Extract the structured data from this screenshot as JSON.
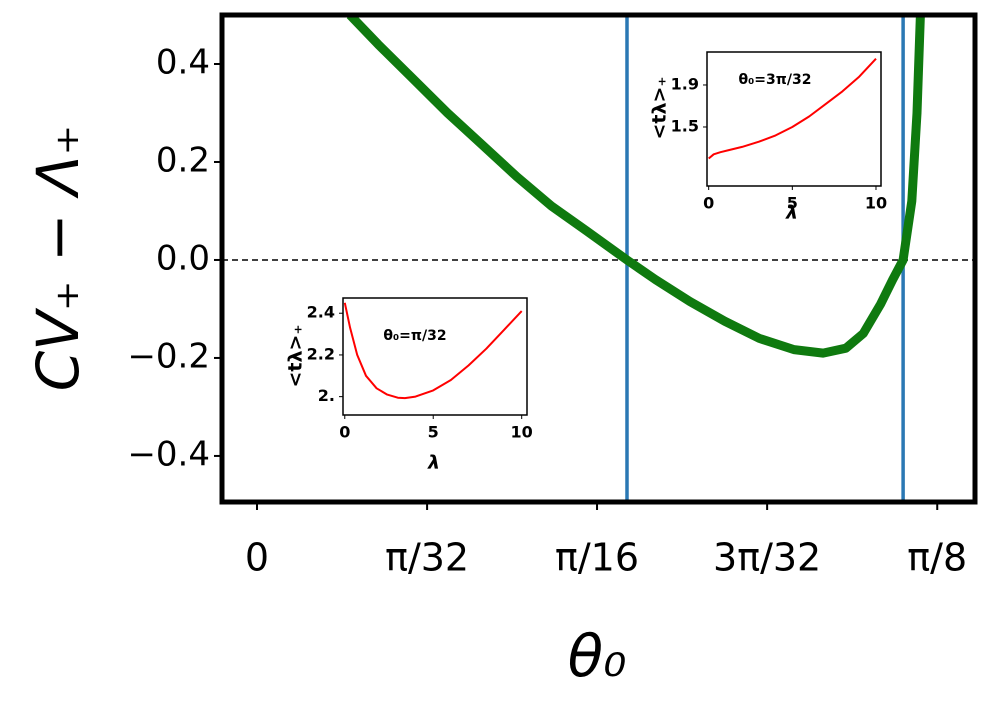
{
  "chart_data": [
    {
      "type": "line",
      "xlabel": "θ₀",
      "ylabel": "CV₊ − Λ₊",
      "color": "#0f7a0f",
      "x": [
        0.0537,
        0.07,
        0.09,
        0.11,
        0.13,
        0.15,
        0.17,
        0.19,
        0.2136,
        0.23,
        0.25,
        0.27,
        0.29,
        0.31,
        0.3268,
        0.34,
        0.35,
        0.36,
        0.367,
        0.373,
        0.378,
        0.381,
        0.383
      ],
      "values": [
        0.5,
        0.44,
        0.37,
        0.3,
        0.235,
        0.17,
        0.11,
        0.06,
        0.0,
        -0.04,
        -0.085,
        -0.125,
        -0.16,
        -0.183,
        -0.19,
        -0.18,
        -0.15,
        -0.09,
        -0.04,
        0.0,
        0.12,
        0.3,
        0.5
      ],
      "xlim": [
        -0.0202,
        0.4145
      ],
      "ylim": [
        -0.494,
        0.5
      ],
      "xticks": [
        {
          "value": 0,
          "label": "0"
        },
        {
          "value": 0.0982,
          "label": "π/32"
        },
        {
          "value": 0.1963,
          "label": "π/16"
        },
        {
          "value": 0.2945,
          "label": "3π/32"
        },
        {
          "value": 0.3927,
          "label": "π/8"
        }
      ],
      "yticks": [
        {
          "value": -0.4,
          "label": "−0.4"
        },
        {
          "value": -0.2,
          "label": "−0.2"
        },
        {
          "value": 0.0,
          "label": "0.0"
        },
        0.2,
        0.4
      ],
      "vlines": [
        0.2136,
        0.373
      ],
      "vline_color": "#2a78b4",
      "hline": 0
    },
    {
      "type": "line",
      "xlabel": "λ",
      "ylabel": "<tλ>₊",
      "annotation": "θ₀=π/32",
      "color": "#ff0000",
      "x": [
        0,
        0.3,
        0.7,
        1.2,
        1.8,
        2.4,
        3.0,
        3.4,
        4.0,
        5.0,
        6.0,
        7.0,
        8.0,
        9.0,
        10.0
      ],
      "values": [
        2.45,
        2.33,
        2.2,
        2.1,
        2.04,
        2.01,
        1.995,
        1.993,
        2.0,
        2.03,
        2.08,
        2.15,
        2.23,
        2.32,
        2.41
      ],
      "xlim": [
        -0.1,
        10.3
      ],
      "ylim": [
        1.912,
        2.473
      ],
      "xticks": [
        0,
        5,
        10
      ],
      "yticks": [
        {
          "value": 2.0,
          "label": "2."
        },
        2.2,
        2.4
      ]
    },
    {
      "type": "line",
      "xlabel": "λ",
      "ylabel": "<tλ>₊",
      "annotation": "θ₀=3π/32",
      "color": "#ff0000",
      "x": [
        0,
        0.3,
        0.7,
        1.2,
        2.0,
        3.0,
        4.0,
        5.0,
        6.0,
        7.0,
        8.0,
        9.0,
        10.0
      ],
      "values": [
        1.2,
        1.24,
        1.26,
        1.28,
        1.31,
        1.36,
        1.42,
        1.5,
        1.6,
        1.72,
        1.84,
        1.98,
        2.15
      ],
      "xlim": [
        -0.1,
        10.3
      ],
      "ylim": [
        0.938,
        2.214
      ],
      "xticks": [
        0,
        5,
        10
      ],
      "yticks": [
        1.5,
        1.9
      ]
    }
  ]
}
